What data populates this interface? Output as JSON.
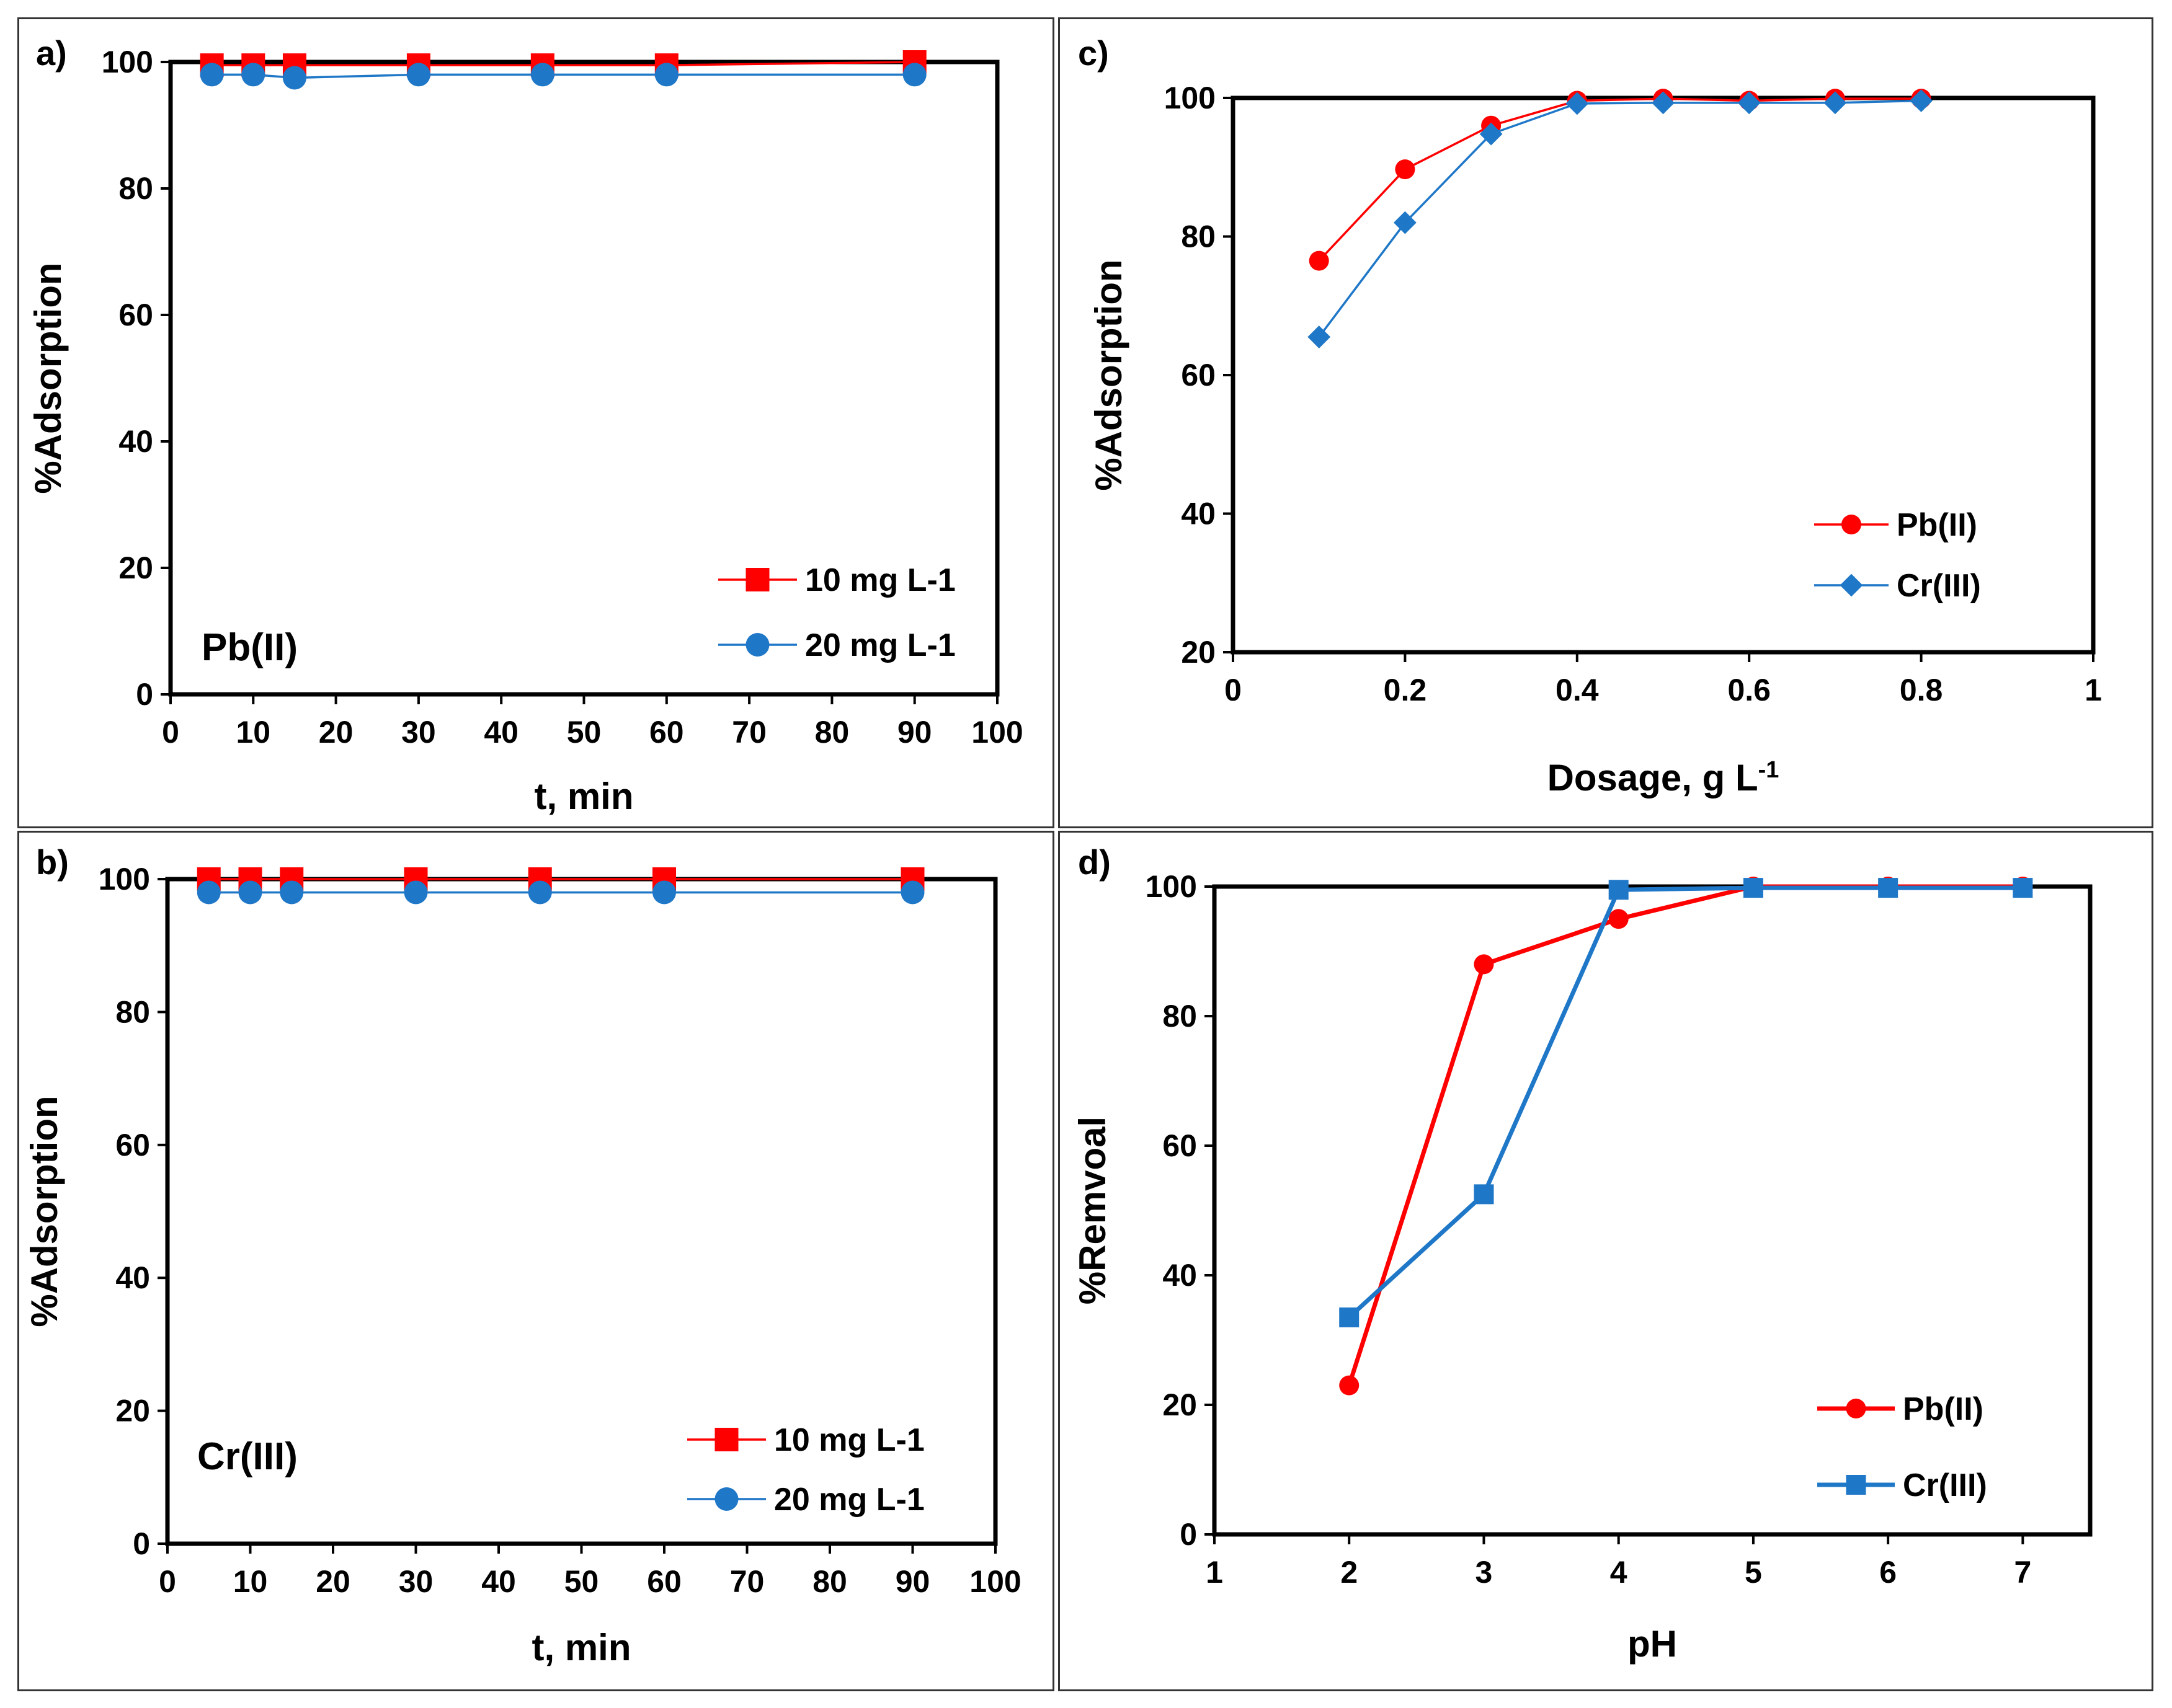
{
  "chart_data": [
    {
      "panel": "a)",
      "type": "line",
      "xlabel": "t, min",
      "ylabel": "%Adsorption",
      "annotation": "Pb(II)",
      "xlim": [
        0,
        100
      ],
      "ylim": [
        0,
        100
      ],
      "xticks": [
        0,
        10,
        20,
        30,
        40,
        50,
        60,
        70,
        80,
        90,
        100
      ],
      "yticks": [
        0,
        20,
        40,
        60,
        80,
        100
      ],
      "legend_position": "bottom-right",
      "series": [
        {
          "name": "10 mg L-1",
          "color": "#ff0000",
          "marker": "square",
          "x": [
            5,
            10,
            15,
            30,
            45,
            60,
            90
          ],
          "values": [
            99.5,
            99.5,
            99.5,
            99.5,
            99.5,
            99.5,
            100
          ]
        },
        {
          "name": "20 mg L-1",
          "color": "#1f77c8",
          "marker": "circle",
          "x": [
            5,
            10,
            15,
            30,
            45,
            60,
            90
          ],
          "values": [
            98,
            98,
            97.5,
            98,
            98,
            98,
            98
          ]
        }
      ]
    },
    {
      "panel": "b)",
      "type": "line",
      "xlabel": "t, min",
      "ylabel": "%Adsorption",
      "annotation": "Cr(III)",
      "xlim": [
        0,
        100
      ],
      "ylim": [
        0,
        100
      ],
      "xticks": [
        0,
        10,
        20,
        30,
        40,
        50,
        60,
        70,
        80,
        90,
        100
      ],
      "yticks": [
        0,
        20,
        40,
        60,
        80,
        100
      ],
      "legend_position": "bottom-right",
      "series": [
        {
          "name": "10 mg L-1",
          "color": "#ff0000",
          "marker": "square",
          "x": [
            5,
            10,
            15,
            30,
            45,
            60,
            90
          ],
          "values": [
            100,
            100,
            100,
            100,
            100,
            100,
            100
          ]
        },
        {
          "name": "20 mg L-1",
          "color": "#1f77c8",
          "marker": "circle",
          "x": [
            5,
            10,
            15,
            30,
            45,
            60,
            90
          ],
          "values": [
            98,
            98,
            98,
            98,
            98,
            98,
            98
          ]
        }
      ]
    },
    {
      "panel": "c)",
      "type": "line",
      "xlabel": "Dosage, g L",
      "xlabel_sup": "-1",
      "ylabel": "%Adsorption",
      "xlim": [
        0,
        1
      ],
      "ylim": [
        20,
        100
      ],
      "xticks": [
        0,
        0.2,
        0.4,
        0.6,
        0.8,
        1
      ],
      "xticklabels": [
        "0",
        "0.2",
        "0.4",
        "0.6",
        "0.8",
        "1"
      ],
      "yticks": [
        20,
        40,
        60,
        80,
        100
      ],
      "legend_position": "bottom-right",
      "series": [
        {
          "name": "Pb(II)",
          "color": "#ff0000",
          "marker": "circle",
          "x": [
            0.1,
            0.2,
            0.3,
            0.4,
            0.5,
            0.6,
            0.7,
            0.8
          ],
          "values": [
            76.5,
            89.7,
            96,
            99.6,
            99.9,
            99.6,
            99.9,
            99.9
          ]
        },
        {
          "name": "Cr(III)",
          "color": "#1f77c8",
          "marker": "diamond",
          "x": [
            0.1,
            0.2,
            0.3,
            0.4,
            0.5,
            0.6,
            0.7,
            0.8
          ],
          "values": [
            65.5,
            82,
            94.8,
            99.2,
            99.3,
            99.3,
            99.3,
            99.6
          ]
        }
      ]
    },
    {
      "panel": "d)",
      "type": "line",
      "xlabel": "pH",
      "ylabel": "%Remvoal",
      "xlim": [
        1,
        7.5
      ],
      "ylim": [
        0,
        100
      ],
      "xticks": [
        1,
        2,
        3,
        4,
        5,
        6,
        7
      ],
      "yticks": [
        0,
        20,
        40,
        60,
        80,
        100
      ],
      "legend_position": "bottom-right",
      "series": [
        {
          "name": "Pb(II)",
          "color": "#ff0000",
          "marker": "circle",
          "x": [
            2,
            3,
            4,
            5,
            6,
            7
          ],
          "values": [
            23,
            88,
            95,
            100,
            100,
            100
          ]
        },
        {
          "name": "Cr(III)",
          "color": "#1f77c8",
          "marker": "square",
          "x": [
            2,
            3,
            4,
            5,
            6,
            7
          ],
          "values": [
            33.5,
            52.5,
            99.5,
            99.8,
            99.8,
            99.8
          ]
        }
      ]
    }
  ]
}
